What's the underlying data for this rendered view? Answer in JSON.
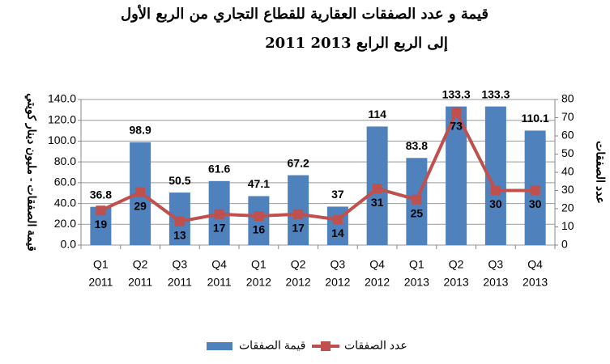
{
  "chart_data": {
    "type": "bar-line",
    "title": [
      "قيمة و عدد الصفقات العقارية للقطاع التجاري من الربع الأول",
      "2011 إلى الربع الرابع 2013"
    ],
    "categories": [
      [
        "Q1",
        "2011"
      ],
      [
        "Q2",
        "2011"
      ],
      [
        "Q3",
        "2011"
      ],
      [
        "Q4",
        "2011"
      ],
      [
        "Q1",
        "2012"
      ],
      [
        "Q2",
        "2012"
      ],
      [
        "Q3",
        "2012"
      ],
      [
        "Q4",
        "2012"
      ],
      [
        "Q1",
        "2013"
      ],
      [
        "Q2",
        "2013"
      ],
      [
        "Q3",
        "2013"
      ],
      [
        "Q4",
        "2013"
      ]
    ],
    "series": [
      {
        "name": "قيمة الصفقات",
        "type": "bar",
        "color": "#4f81bd",
        "values": [
          36.8,
          98.9,
          50.5,
          61.6,
          47.1,
          67.2,
          37,
          114,
          83.8,
          133.3,
          133.3,
          110.1
        ]
      },
      {
        "name": "عدد الصفقات",
        "type": "line",
        "axis": "y2",
        "color": "#c0504d",
        "values": [
          19,
          29,
          13,
          17,
          16,
          17,
          14,
          31,
          25,
          73,
          30,
          30
        ]
      }
    ],
    "ylabel": "قيمة الصفقات - مليون دينار كويتي",
    "y2label": "عدد الصفقات",
    "ylim": [
      0,
      140
    ],
    "yticks": [
      {
        "value": 0,
        "label": "0.0"
      },
      {
        "value": 20,
        "label": "20.0"
      },
      {
        "value": 40,
        "label": "40.0"
      },
      {
        "value": 60,
        "label": "60.0"
      },
      {
        "value": 80,
        "label": "80.0"
      },
      {
        "value": 100,
        "label": "100.0"
      },
      {
        "value": 120,
        "label": "120.0"
      },
      {
        "value": 140,
        "label": "140.0"
      }
    ],
    "y2lim": [
      0,
      80
    ],
    "y2ticks": [
      0,
      10,
      20,
      30,
      40,
      50,
      60,
      70,
      80
    ],
    "grid": true
  }
}
